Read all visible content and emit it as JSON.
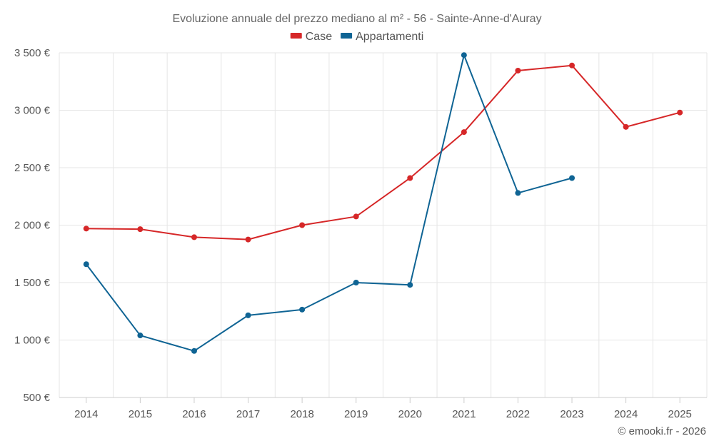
{
  "chart_data": {
    "type": "line",
    "title": "Evoluzione annuale del prezzo mediano al m² - 56 - Sainte-Anne-d'Auray",
    "categories": [
      "2014",
      "2015",
      "2016",
      "2017",
      "2018",
      "2019",
      "2020",
      "2021",
      "2022",
      "2023",
      "2024",
      "2025"
    ],
    "series": [
      {
        "name": "Case",
        "color": "#d62728",
        "values": [
          1970,
          1965,
          1895,
          1875,
          2000,
          2075,
          2410,
          2810,
          3345,
          3390,
          2855,
          2980
        ]
      },
      {
        "name": "Appartamenti",
        "color": "#0f6494",
        "values": [
          1660,
          1040,
          905,
          1215,
          1265,
          1500,
          1480,
          3480,
          2280,
          2410,
          null,
          null
        ]
      }
    ],
    "ylim": [
      500,
      3500
    ],
    "yticks": [
      500,
      1000,
      1500,
      2000,
      2500,
      3000,
      3500
    ],
    "ytick_labels": [
      "500 €",
      "1 000 €",
      "1 500 €",
      "2 000 €",
      "2 500 €",
      "3 000 €",
      "3 500 €"
    ],
    "grid": true,
    "legend": "top-center"
  },
  "credit": "© emooki.fr - 2026"
}
